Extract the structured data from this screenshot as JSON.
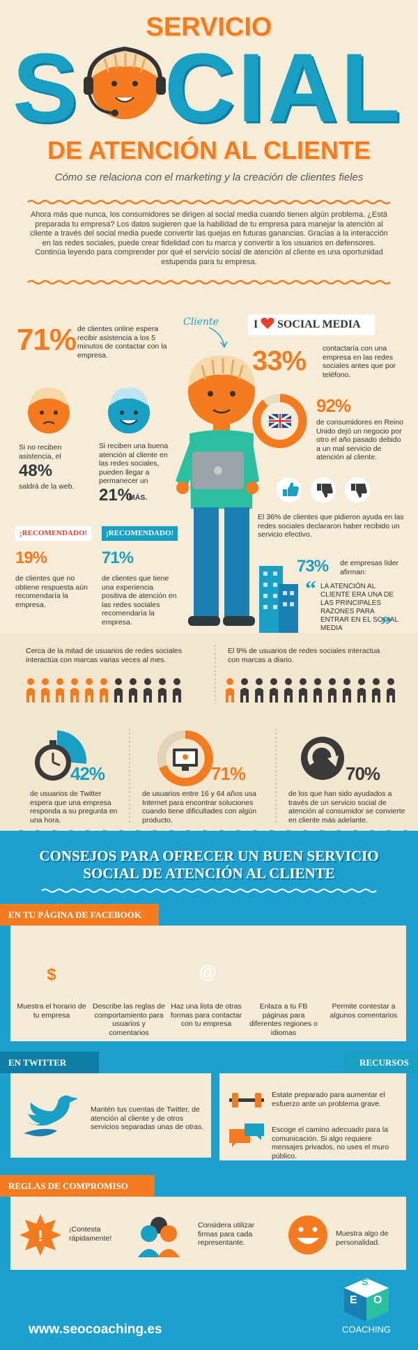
{
  "header": {
    "title_top": "SERVICIO",
    "title_main_start": "S",
    "title_main_end": "CIAL",
    "title_bottom": "DE ATENCIÓN AL CLIENTE",
    "subtitle": "Cómo se relaciona con el marketing y la creación de clientes fieles",
    "intro": "Ahora más que nunca, los consumidores se dirigen al social media cuando tienen algún problema. ¿Está preparada tu empresa? Los datos sugieren que la habilidad de tu empresa para manejar la atención al cliente a través del social media puede convertir las quejas en futuras ganancias. Gracias a la interacción en las redes sociales, puede crear fidelidad con tu marca y convertir a los usuarios en defensores. Continúa leyendo para comprender por qué el servicio social de atención al cliente es una oportunidad estupenda para tu empresa."
  },
  "stats": {
    "client_label": "Cliente",
    "badge": {
      "pre": "I",
      "post": "SOCIAL MEDIA"
    },
    "online": {
      "value": "71%",
      "text": "de clientes online espera recibir asistencia a los 5 minutos de contactar con la empresa."
    },
    "no_help": {
      "pre": "Si no reciben asistencia, el",
      "value": "48%",
      "text": "saldrá de la web."
    },
    "good_help": {
      "pre": "Si reciben una buena atención al cliente en las redes sociales, pueden llegar a permanecer un",
      "value": "21%",
      "text": "MÁS."
    },
    "recommend_no": {
      "badge": "¡RECOMENDADO!",
      "value": "19%",
      "text": "de clientes que no obtiene respuesta aún recomendaría la empresa."
    },
    "recommend_yes": {
      "badge": "¡RECOMENDADO!",
      "value": "71%",
      "text": "de clientes que tiene una experiencia positiva de atención en las redes sociales recomendaría la empresa."
    },
    "phone": {
      "value": "33%",
      "text": "contactaría con una empresa en las redes sociales antes que por teléfono."
    },
    "uk": {
      "value": "92%",
      "text": "de consumidores en Reino Unido dejó un negocio por otro el año pasado debido a un mal servicio de atención al cliente."
    },
    "effective": "El 36% de clientes que pidieron ayuda en las redes sociales declararon haber recibido un servicio efectivo.",
    "leaders": {
      "value": "73%",
      "text": "de empresas líder afirman:",
      "open_quote": "“",
      "quote": "LA ATENCIÓN AL CLIENTE ERA UNA DE LAS PRINCIPALES RAZONES PARA ENTRAR EN EL SOCIAL MEDIA",
      "close_quote": "”"
    }
  },
  "band": {
    "monthly": "Cerca de la mitad de usuarios de redes sociales interactúa con marcas varias veces al mes.",
    "daily": "El 9% de usuarios de redes sociales interactua con marcas a diario.",
    "twitter": {
      "value": "42%",
      "text": "de usuarios de Twitter espera que una empresa responda a su pregunta en una hora."
    },
    "internet": {
      "value": "71%",
      "text": "de usuarios entre 16 y 64 años usa Internet para encontrar soluciones cuando tiene dificultades con algún producto."
    },
    "convert": {
      "value": "70%",
      "text": "de los que han sido ayudados a través de un servicio social de atención al consumidor se convierte en cliente más adelante."
    }
  },
  "tips": {
    "title": "CONSEJOS PARA OFRECER UN BUEN SERVICIO SOCIAL DE ATENCIÓN AL CLIENTE",
    "facebook": {
      "title": "EN TU PÁGINA DE FACEBOOK",
      "clock_icon": "$",
      "book_icon": "@",
      "items": [
        "Muestra el horario de tu empresa",
        "Describe las reglas de comportamiento para usuarios y comentarios",
        "Haz una lista de otras formas para contactar con tu empresa",
        "Enlaza a tu FB páginas para diferentes regiones o idiomas",
        "Permite contestar a algunos comentarios"
      ]
    },
    "twitter": {
      "title": "EN TWITTER",
      "text": "Mantén tus cuentas de Twitter, de atención al cliente y de otros servicios separadas unas de otras."
    },
    "resources": {
      "title": "RECURSOS",
      "items": [
        "Estate preparado para aumentar el esfuerzo ante un problema grave.",
        "Escoge el camino adecuado para la comunicación. Si algo requiere mensajes privados, no uses el muro público."
      ]
    },
    "rules": {
      "title": "REGLAS DE COMPROMISO",
      "star_icon": "!",
      "items": [
        "¡Contesta rápidamente!",
        "Considera utilizar firmas para cada representante.",
        "Muestra algo de personalidad."
      ]
    }
  },
  "footer": {
    "url": "www.seocoaching.es",
    "logo_letters": [
      "S",
      "E",
      "O"
    ],
    "logo_name": "COACHING"
  }
}
